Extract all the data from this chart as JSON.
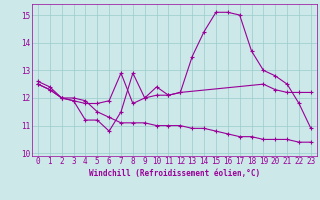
{
  "x_values": [
    0,
    1,
    2,
    3,
    4,
    5,
    6,
    7,
    8,
    9,
    10,
    11,
    12,
    13,
    14,
    15,
    16,
    17,
    18,
    19,
    20,
    21,
    22,
    23
  ],
  "line1": [
    12.6,
    12.4,
    12.0,
    11.9,
    11.2,
    11.2,
    10.8,
    11.5,
    12.9,
    12.0,
    12.4,
    12.1,
    12.2,
    13.5,
    14.4,
    15.1,
    15.1,
    15.0,
    13.7,
    13.0,
    12.8,
    12.5,
    11.8,
    10.9
  ],
  "line2_x": [
    0,
    1,
    2,
    3,
    4,
    5,
    6,
    7,
    8,
    9,
    10,
    11,
    12,
    19,
    20,
    21,
    22,
    23
  ],
  "line2_y": [
    12.5,
    12.3,
    12.0,
    11.9,
    11.8,
    11.8,
    11.9,
    12.9,
    11.8,
    12.0,
    12.1,
    12.1,
    12.2,
    12.5,
    12.3,
    12.2,
    12.2,
    12.2
  ],
  "line3": [
    12.5,
    12.3,
    12.0,
    12.0,
    11.9,
    11.5,
    11.3,
    11.1,
    11.1,
    11.1,
    11.0,
    11.0,
    11.0,
    10.9,
    10.9,
    10.8,
    10.7,
    10.6,
    10.6,
    10.5,
    10.5,
    10.5,
    10.4,
    10.4
  ],
  "color": "#990099",
  "bg_color": "#cce8e8",
  "grid_color": "#99cccc",
  "xlabel": "Windchill (Refroidissement éolien,°C)",
  "ylim": [
    9.9,
    15.4
  ],
  "xlim": [
    -0.5,
    23.5
  ],
  "yticks": [
    10,
    11,
    12,
    13,
    14,
    15
  ],
  "xticks": [
    0,
    1,
    2,
    3,
    4,
    5,
    6,
    7,
    8,
    9,
    10,
    11,
    12,
    13,
    14,
    15,
    16,
    17,
    18,
    19,
    20,
    21,
    22,
    23
  ],
  "linewidth": 0.8,
  "markersize": 2.5,
  "xlabel_fontsize": 5.5,
  "tick_fontsize": 5.5
}
